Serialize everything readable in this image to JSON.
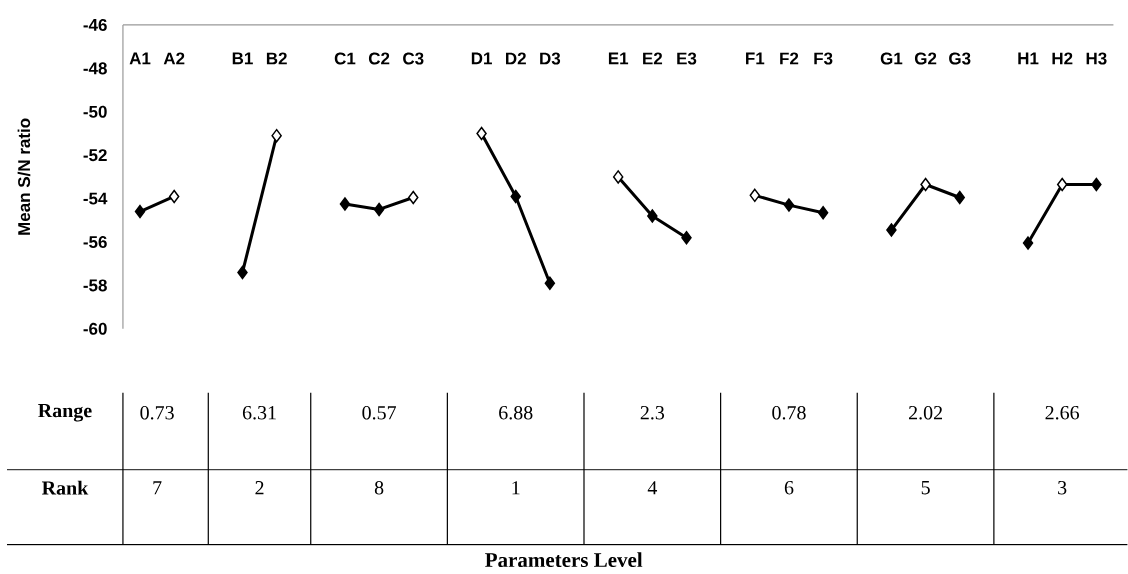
{
  "chart_data": {
    "type": "line",
    "ylabel": "Mean S/N ratio",
    "categories": [
      "A1",
      "A2",
      null,
      "B1",
      "B2",
      null,
      "C1",
      "C2",
      "C3",
      null,
      "D1",
      "D2",
      "D3",
      null,
      "E1",
      "E2",
      "E3",
      null,
      "F1",
      "F2",
      "F3",
      null,
      "G1",
      "G2",
      "G3",
      null,
      "H1",
      "H2",
      "H3"
    ],
    "series": [
      {
        "color": "#000000",
        "values": [
          -54.6,
          -53.9,
          null,
          null,
          null,
          null,
          null,
          null,
          null,
          null,
          null,
          null,
          null,
          null,
          null,
          null,
          null,
          null,
          null,
          null,
          null,
          null,
          null,
          null,
          null,
          null,
          null,
          null,
          null
        ],
        "colors": [
          "#000000",
          "#ffffff",
          null,
          null,
          null,
          null,
          null,
          null,
          null,
          null,
          null,
          null,
          null,
          null,
          null,
          null,
          null,
          null,
          null,
          null,
          null,
          null,
          null,
          null,
          null,
          null,
          null,
          null,
          null
        ]
      },
      {
        "color": "#000000",
        "values": [
          null,
          null,
          null,
          -57.4,
          -51.1,
          null,
          null,
          null,
          null,
          null,
          null,
          null,
          null,
          null,
          null,
          null,
          null,
          null,
          null,
          null,
          null,
          null,
          null,
          null,
          null,
          null,
          null,
          null,
          null
        ],
        "colors": [
          null,
          null,
          null,
          "#000000",
          "#ffffff",
          null,
          null,
          null,
          null,
          null,
          null,
          null,
          null,
          null,
          null,
          null,
          null,
          null,
          null,
          null,
          null,
          null,
          null,
          null,
          null,
          null,
          null,
          null,
          null
        ]
      },
      {
        "color": "#000000",
        "values": [
          null,
          null,
          null,
          null,
          null,
          null,
          -54.25,
          -54.5,
          -53.95,
          null,
          null,
          null,
          null,
          null,
          null,
          null,
          null,
          null,
          null,
          null,
          null,
          null,
          null,
          null,
          null,
          null,
          null,
          null,
          null
        ],
        "colors": [
          null,
          null,
          null,
          null,
          null,
          null,
          "#000000",
          "#000000",
          "#ffffff",
          null,
          null,
          null,
          null,
          null,
          null,
          null,
          null,
          null,
          null,
          null,
          null,
          null,
          null,
          null,
          null,
          null,
          null,
          null,
          null
        ]
      },
      {
        "color": "#000000",
        "values": [
          null,
          null,
          null,
          null,
          null,
          null,
          null,
          null,
          null,
          null,
          -51.0,
          -53.9,
          -57.9,
          null,
          null,
          null,
          null,
          null,
          null,
          null,
          null,
          null,
          null,
          null,
          null,
          null,
          null,
          null,
          null
        ],
        "colors": [
          null,
          null,
          null,
          null,
          null,
          null,
          null,
          null,
          null,
          null,
          "#ffffff",
          "#000000",
          "#000000",
          null,
          null,
          null,
          null,
          null,
          null,
          null,
          null,
          null,
          null,
          null,
          null,
          null,
          null,
          null,
          null
        ]
      },
      {
        "color": "#000000",
        "values": [
          null,
          null,
          null,
          null,
          null,
          null,
          null,
          null,
          null,
          null,
          null,
          null,
          null,
          null,
          -53.0,
          -54.8,
          -55.8,
          null,
          null,
          null,
          null,
          null,
          null,
          null,
          null,
          null,
          null,
          null,
          null
        ],
        "colors": [
          null,
          null,
          null,
          null,
          null,
          null,
          null,
          null,
          null,
          null,
          null,
          null,
          null,
          null,
          "#ffffff",
          "#000000",
          "#000000",
          null,
          null,
          null,
          null,
          null,
          null,
          null,
          null,
          null,
          null,
          null,
          null
        ]
      },
      {
        "color": "#000000",
        "values": [
          null,
          null,
          null,
          null,
          null,
          null,
          null,
          null,
          null,
          null,
          null,
          null,
          null,
          null,
          null,
          null,
          null,
          null,
          -53.85,
          -54.3,
          -54.65,
          null,
          null,
          null,
          null,
          null,
          null,
          null,
          null
        ],
        "colors": [
          null,
          null,
          null,
          null,
          null,
          null,
          null,
          null,
          null,
          null,
          null,
          null,
          null,
          null,
          null,
          null,
          null,
          null,
          "#ffffff",
          "#000000",
          "#000000",
          null,
          null,
          null,
          null,
          null,
          null,
          null,
          null
        ]
      },
      {
        "color": "#000000",
        "values": [
          null,
          null,
          null,
          null,
          null,
          null,
          null,
          null,
          null,
          null,
          null,
          null,
          null,
          null,
          null,
          null,
          null,
          null,
          null,
          null,
          null,
          null,
          -55.45,
          -53.35,
          -53.95,
          null,
          null,
          null,
          null
        ],
        "colors": [
          null,
          null,
          null,
          null,
          null,
          null,
          null,
          null,
          null,
          null,
          null,
          null,
          null,
          null,
          null,
          null,
          null,
          null,
          null,
          null,
          null,
          null,
          "#000000",
          "#ffffff",
          "#000000",
          null,
          null,
          null,
          null
        ]
      },
      {
        "color": "#000000",
        "values": [
          null,
          null,
          null,
          null,
          null,
          null,
          null,
          null,
          null,
          null,
          null,
          null,
          null,
          null,
          null,
          null,
          null,
          null,
          null,
          null,
          null,
          null,
          null,
          null,
          null,
          null,
          -56.05,
          -53.35,
          -53.35
        ],
        "colors": [
          null,
          null,
          null,
          null,
          null,
          null,
          null,
          null,
          null,
          null,
          null,
          null,
          null,
          null,
          null,
          null,
          null,
          null,
          null,
          null,
          null,
          null,
          null,
          null,
          null,
          null,
          "#000000",
          "#ffffff",
          "#000000"
        ]
      }
    ],
    "ylim": [
      -60,
      -46
    ],
    "yticks": [
      -60,
      -58,
      -56,
      -54,
      -52,
      -50,
      -48,
      -46
    ],
    "marker": "diamond",
    "grid": false,
    "annotations": [
      "Range",
      "0.73",
      "6.31",
      "0.57",
      "6.88",
      "2.3",
      "0.78",
      "2.02",
      "2.66",
      "Rank",
      "7",
      "2",
      "8",
      "1",
      "4",
      "6",
      "5",
      "3",
      "Parameters Level"
    ]
  }
}
